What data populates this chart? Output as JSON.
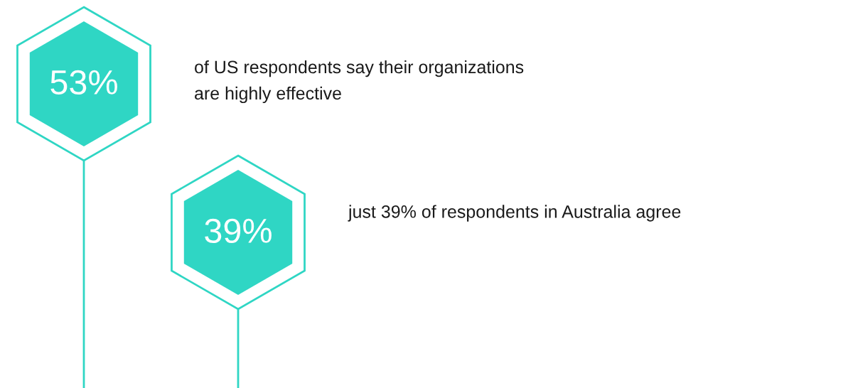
{
  "chart_data": {
    "type": "other",
    "categories": [
      "of US respondents say their organizations\nare highly effective",
      "just 39% of respondents in Australia agree"
    ],
    "values": [
      53,
      39
    ],
    "value_labels": [
      "53%",
      "39%"
    ],
    "colors": [
      "#2fd6c4",
      "#2fd6c4"
    ]
  }
}
